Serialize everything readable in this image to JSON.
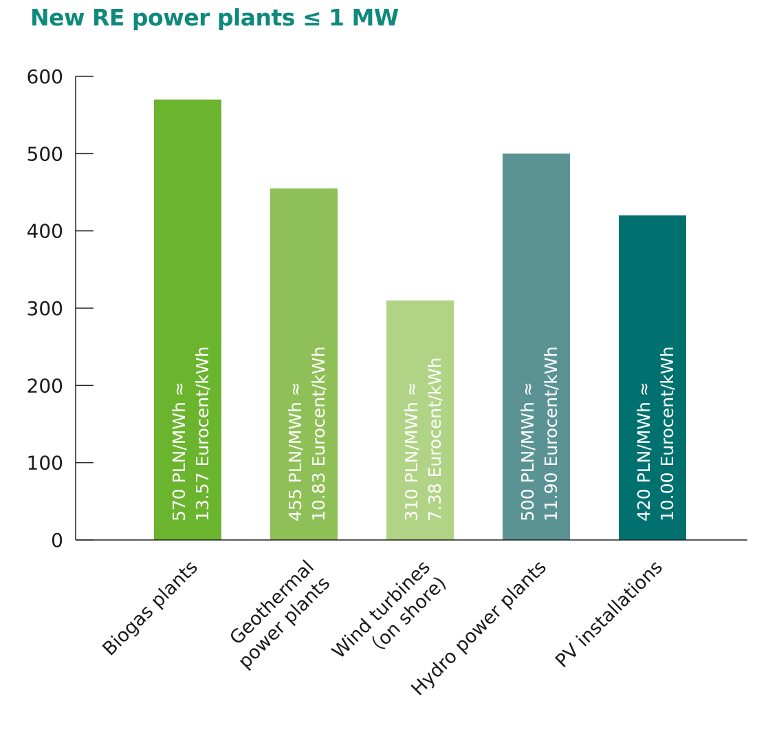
{
  "title": "New RE power plants ≤ 1 MW",
  "colors": {
    "title": "#0e8a7c",
    "axis": "#222222"
  },
  "chart_data": {
    "type": "bar",
    "title": "New RE power plants ≤ 1 MW",
    "xlabel": "",
    "ylabel": "",
    "ylim": [
      0,
      600
    ],
    "yticks": [
      "0",
      "100",
      "200",
      "300",
      "400",
      "500",
      "600"
    ],
    "grid": false,
    "categories": [
      [
        "Biogas plants"
      ],
      [
        "Geothermal",
        "power plants"
      ],
      [
        "Wind turbines",
        "（on shore)"
      ],
      [
        "Hydro power plants"
      ],
      [
        "PV installations"
      ]
    ],
    "values": [
      570,
      455,
      310,
      500,
      420
    ],
    "bar_colors": [
      "#6ab42e",
      "#8fc057",
      "#b1d385",
      "#5b9394",
      "#00716f"
    ],
    "bar_labels": [
      [
        "570 PLN/MWh ≈",
        "13.57 Eurocent/kWh"
      ],
      [
        "455 PLN/MWh ≈",
        "10.83 Eurocent/kWh"
      ],
      [
        "310 PLN/MWh ≈",
        "7.38 Eurocent/kWh"
      ],
      [
        "500 PLN/MWh ≈",
        "11.90 Eurocent/kWh"
      ],
      [
        "420 PLN/MWh ≈",
        "10.00 Eurocent/kWh"
      ]
    ]
  }
}
